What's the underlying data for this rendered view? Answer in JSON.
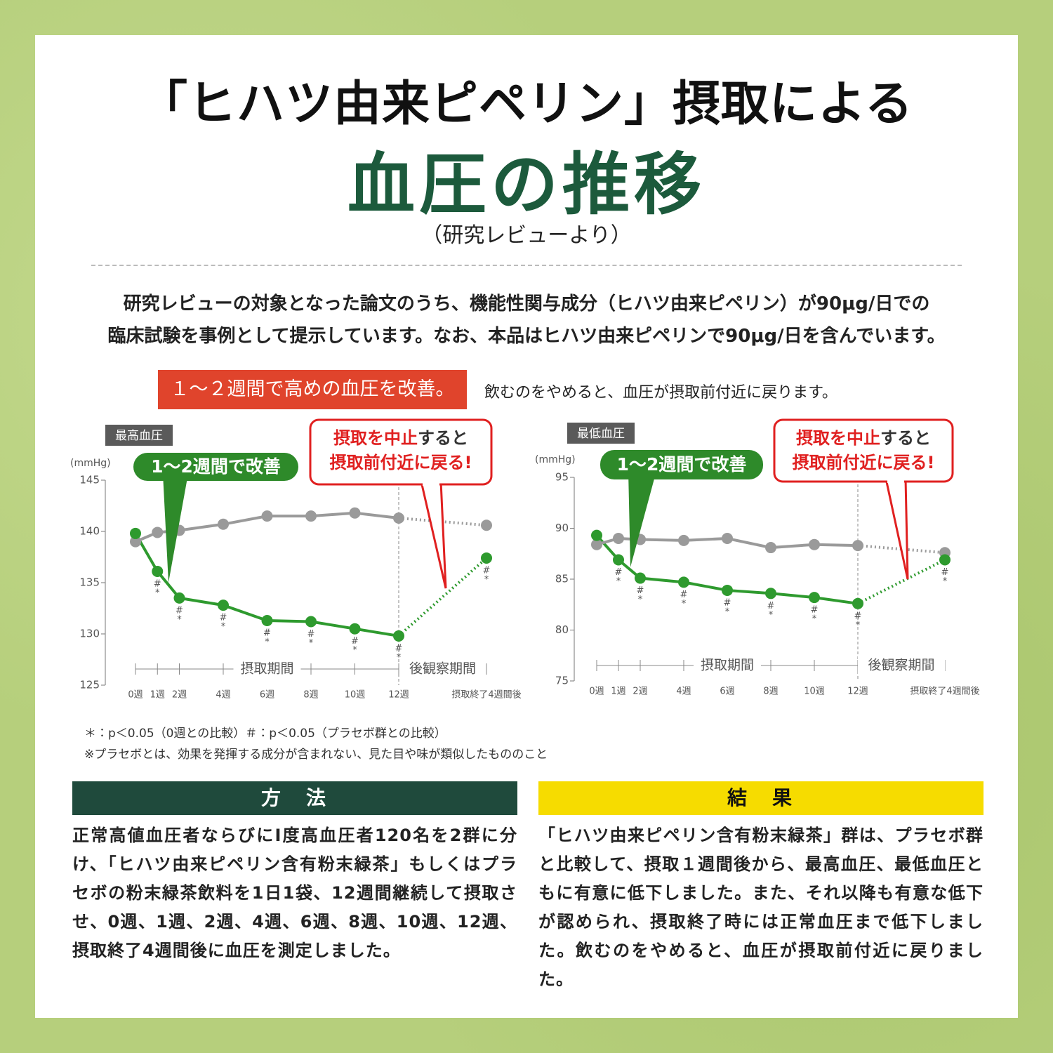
{
  "header": {
    "title": "「ヒハツ由来ピペリン」摂取による",
    "subtitle": "血圧の推移",
    "source": "（研究レビューより）"
  },
  "intro": {
    "lines": [
      "研究レビューの対象となった論文のうち、機能性関与成分（ヒハツ由来ピペリン）が90μg/日での",
      "臨床試験を事例として提示しています。なお、本品はヒハツ由来ピペリンで90μg/日を含んでいます。"
    ]
  },
  "banner": "１～２週間で高めの血圧を改善。",
  "banner_note": "飲むのをやめると、血圧が摂取前付近に戻ります。",
  "chart_data": [
    {
      "type": "line",
      "panel_label": "最高血圧",
      "y_unit": "(mmHg)",
      "x": [
        0,
        1,
        2,
        4,
        6,
        8,
        10,
        12,
        16
      ],
      "xlim": [
        0,
        16
      ],
      "xticks": [
        {
          "value": 0,
          "label": "0週"
        },
        {
          "value": 1,
          "label": "1週"
        },
        {
          "value": 2,
          "label": "2週"
        },
        {
          "value": 4,
          "label": "4週"
        },
        {
          "value": 6,
          "label": "6週"
        },
        {
          "value": 8,
          "label": "8週"
        },
        {
          "value": 10,
          "label": "10週"
        },
        {
          "value": 12,
          "label": "12週"
        },
        {
          "value": 16,
          "label": "摂取終了4週間後"
        }
      ],
      "ylim": [
        125,
        145
      ],
      "yticks": [
        125,
        130,
        135,
        140,
        145
      ],
      "phase_boundary": 12,
      "period_labels": [
        "摂取期間",
        "後観察期間"
      ],
      "series": [
        {
          "color": "#2e9a2e",
          "values": [
            139.8,
            136.1,
            133.5,
            132.8,
            131.3,
            131.2,
            130.5,
            129.8,
            137.4
          ],
          "sig_labels": [
            null,
            [
              "#",
              "*"
            ],
            [
              "#",
              "*"
            ],
            [
              "#",
              "*"
            ],
            [
              "#",
              "*"
            ],
            [
              "#",
              "*"
            ],
            [
              "#",
              "*"
            ],
            [
              "#",
              "*"
            ],
            [
              "#",
              "*"
            ]
          ]
        },
        {
          "color": "#9a9a9a",
          "values": [
            139.0,
            139.9,
            140.1,
            140.7,
            141.5,
            141.5,
            141.8,
            141.3,
            140.6
          ]
        }
      ],
      "callout_green": "1～2週間で改善",
      "callout_red": {
        "line1_red": "摂取を中止",
        "line1_rest": "すると",
        "line2": "摂取前付近に戻る!"
      }
    },
    {
      "type": "line",
      "panel_label": "最低血圧",
      "y_unit": "(mmHg)",
      "x": [
        0,
        1,
        2,
        4,
        6,
        8,
        10,
        12,
        16
      ],
      "xlim": [
        0,
        16
      ],
      "xticks": [
        {
          "value": 0,
          "label": "0週"
        },
        {
          "value": 1,
          "label": "1週"
        },
        {
          "value": 2,
          "label": "2週"
        },
        {
          "value": 4,
          "label": "4週"
        },
        {
          "value": 6,
          "label": "6週"
        },
        {
          "value": 8,
          "label": "8週"
        },
        {
          "value": 10,
          "label": "10週"
        },
        {
          "value": 12,
          "label": "12週"
        },
        {
          "value": 16,
          "label": "摂取終了4週間後"
        }
      ],
      "ylim": [
        75,
        95
      ],
      "yticks": [
        75,
        80,
        85,
        90,
        95
      ],
      "phase_boundary": 12,
      "period_labels": [
        "摂取期間",
        "後観察期間"
      ],
      "series": [
        {
          "color": "#2e9a2e",
          "values": [
            89.3,
            86.9,
            85.1,
            84.7,
            83.9,
            83.6,
            83.2,
            82.6,
            86.9
          ],
          "sig_labels": [
            null,
            [
              "#",
              "*"
            ],
            [
              "#",
              "*"
            ],
            [
              "#",
              "*"
            ],
            [
              "#",
              "*"
            ],
            [
              "#",
              "*"
            ],
            [
              "#",
              "*"
            ],
            [
              "#",
              "*"
            ],
            [
              "#",
              "*"
            ]
          ]
        },
        {
          "color": "#9a9a9a",
          "values": [
            88.4,
            89.0,
            88.9,
            88.8,
            89.0,
            88.1,
            88.4,
            88.3,
            87.6
          ]
        }
      ],
      "callout_green": "1～2週間で改善",
      "callout_red": {
        "line1_red": "摂取を中止",
        "line1_rest": "すると",
        "line2": "摂取前付近に戻る!"
      }
    }
  ],
  "footnotes": [
    "＊：p＜0.05（0週との比較）＃：p＜0.05（プラセボ群との比較）",
    "※プラセボとは、効果を発揮する成分が含まれない、見た目や味が類似したもののこと"
  ],
  "method": {
    "title": "方　法",
    "text": "正常高値血圧者ならびにI度高血圧者120名を2群に分け、「ヒハツ由来ピペリン含有粉末緑茶」もしくはプラセボの粉末緑茶飲料を1日1袋、12週間継続して摂取させ、0週、1週、2週、4週、6週、8週、10週、12週、摂取終了4週間後に血圧を測定しました。"
  },
  "result": {
    "title": "結　果",
    "text": "「ヒハツ由来ピペリン含有粉末緑茶」群は、プラセボ群と比較して、摂取１週間後から、最高血圧、最低血圧ともに有意に低下しました。また、それ以降も有意な低下が認められ、摂取終了時には正常血圧まで低下しました。飲むのをやめると、血圧が摂取前付近に戻りました。"
  }
}
